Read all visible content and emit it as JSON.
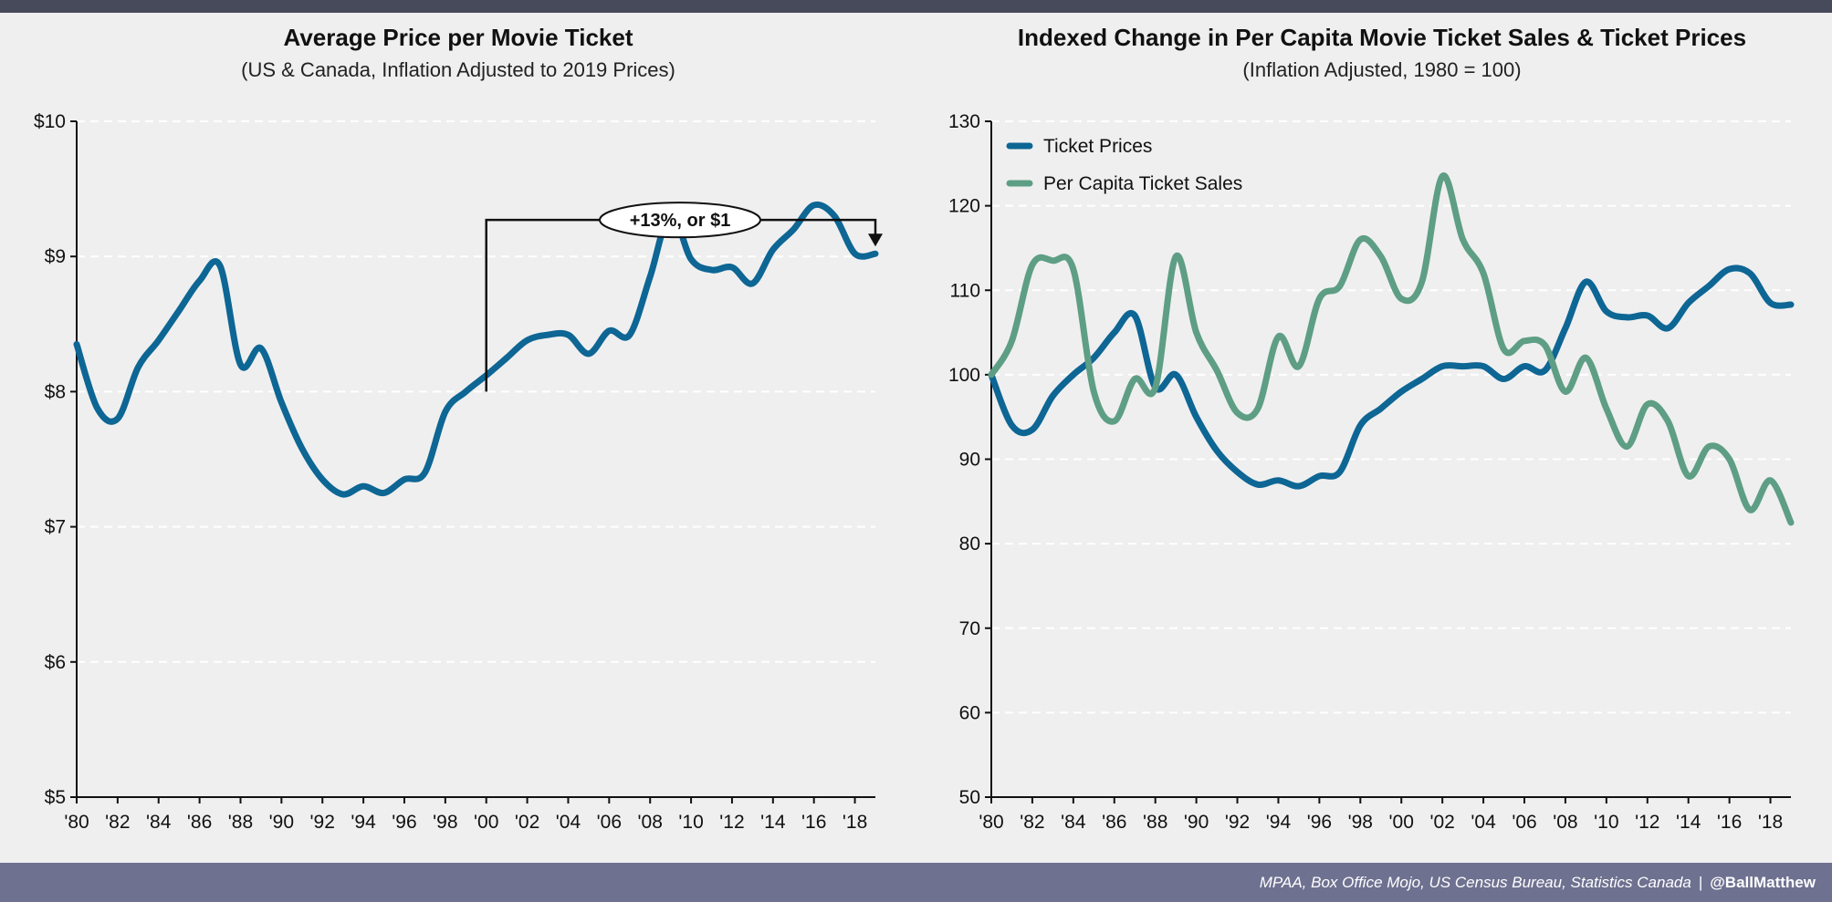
{
  "footer": {
    "sources": "MPAA, Box Office Mojo, US Census Bureau, Statistics Canada",
    "separator": "|",
    "handle": "@BallMatthew"
  },
  "colors": {
    "ticket_prices": "#0d6694",
    "ticket_sales": "#5e9e85",
    "annotation": "#111111",
    "background": "#efeff0",
    "top_bar": "#474a5a",
    "footer": "#6e7190"
  },
  "chart_data": [
    {
      "type": "line",
      "title": "Average Price per Movie Ticket",
      "subtitle": "(US & Canada, Inflation Adjusted to 2019 Prices)",
      "xlabel": "",
      "ylabel": "",
      "x": [
        1980,
        1981,
        1982,
        1983,
        1984,
        1985,
        1986,
        1987,
        1988,
        1989,
        1990,
        1991,
        1992,
        1993,
        1994,
        1995,
        1996,
        1997,
        1998,
        1999,
        2000,
        2001,
        2002,
        2003,
        2004,
        2005,
        2006,
        2007,
        2008,
        2009,
        2010,
        2011,
        2012,
        2013,
        2014,
        2015,
        2016,
        2017,
        2018,
        2019
      ],
      "xlim": [
        1980,
        2019
      ],
      "xticks": [
        1980,
        1982,
        1984,
        1986,
        1988,
        1990,
        1992,
        1994,
        1996,
        1998,
        2000,
        2002,
        2004,
        2006,
        2008,
        2010,
        2012,
        2014,
        2016,
        2018
      ],
      "xtick_labels": [
        "'80",
        "'82",
        "'84",
        "'86",
        "'88",
        "'90",
        "'92",
        "'94",
        "'96",
        "'98",
        "'00",
        "'02",
        "'04",
        "'06",
        "'08",
        "'10",
        "'12",
        "'14",
        "'16",
        "'18"
      ],
      "ylim": [
        5,
        10
      ],
      "yticks": [
        5,
        6,
        7,
        8,
        9,
        10
      ],
      "ytick_labels": [
        "$5",
        "$6",
        "$7",
        "$8",
        "$9",
        "$10"
      ],
      "grid": true,
      "series": [
        {
          "color": "#0d6694",
          "values": [
            8.35,
            7.88,
            7.8,
            8.18,
            8.38,
            8.6,
            8.82,
            8.93,
            8.2,
            8.32,
            7.92,
            7.58,
            7.35,
            7.24,
            7.3,
            7.25,
            7.35,
            7.4,
            7.85,
            8.0,
            8.12,
            8.25,
            8.38,
            8.42,
            8.42,
            8.28,
            8.45,
            8.42,
            8.85,
            9.32,
            8.98,
            8.9,
            8.92,
            8.8,
            9.05,
            9.2,
            9.38,
            9.3,
            9.02,
            9.02
          ]
        }
      ],
      "annotation": {
        "text": "+13%, or $1",
        "from_x": 2000,
        "from_y": 8.0,
        "to_x": 2019,
        "to_y": 9.02,
        "bar_y": 9.27
      }
    },
    {
      "type": "line",
      "title": "Indexed Change in Per Capita Movie Ticket Sales & Ticket Prices",
      "subtitle": "(Inflation Adjusted, 1980 = 100)",
      "xlabel": "",
      "ylabel": "",
      "x": [
        1980,
        1981,
        1982,
        1983,
        1984,
        1985,
        1986,
        1987,
        1988,
        1989,
        1990,
        1991,
        1992,
        1993,
        1994,
        1995,
        1996,
        1997,
        1998,
        1999,
        2000,
        2001,
        2002,
        2003,
        2004,
        2005,
        2006,
        2007,
        2008,
        2009,
        2010,
        2011,
        2012,
        2013,
        2014,
        2015,
        2016,
        2017,
        2018,
        2019
      ],
      "xlim": [
        1980,
        2019
      ],
      "xticks": [
        1980,
        1982,
        1984,
        1986,
        1988,
        1990,
        1992,
        1994,
        1996,
        1998,
        2000,
        2002,
        2004,
        2006,
        2008,
        2010,
        2012,
        2014,
        2016,
        2018
      ],
      "xtick_labels": [
        "'80",
        "'82",
        "'84",
        "'86",
        "'88",
        "'90",
        "'92",
        "'94",
        "'96",
        "'98",
        "'00",
        "'02",
        "'04",
        "'06",
        "'08",
        "'10",
        "'12",
        "'14",
        "'16",
        "'18"
      ],
      "ylim": [
        50,
        130
      ],
      "yticks": [
        50,
        60,
        70,
        80,
        90,
        100,
        110,
        120,
        130
      ],
      "ytick_labels": [
        "50",
        "60",
        "70",
        "80",
        "90",
        "100",
        "110",
        "120",
        "130"
      ],
      "grid": true,
      "legend_position": "top-left",
      "series": [
        {
          "name": "Ticket Prices",
          "color": "#0d6694",
          "values": [
            100,
            94,
            93.5,
            97.5,
            100,
            102,
            105,
            107,
            98.5,
            100,
            95,
            91,
            88.5,
            87,
            87.5,
            86.8,
            88,
            88.5,
            94,
            96,
            98,
            99.5,
            101,
            101,
            101,
            99.5,
            101,
            100.5,
            105.5,
            111,
            107.5,
            106.8,
            107,
            105.5,
            108.5,
            110.5,
            112.5,
            112,
            108.5,
            108.3
          ]
        },
        {
          "name": "Per Capita Ticket Sales",
          "color": "#5e9e85",
          "values": [
            100,
            104,
            113,
            113.5,
            112.5,
            98,
            94.5,
            99.5,
            98.5,
            114,
            105,
            100.5,
            95.5,
            96,
            104.5,
            101,
            109,
            110.5,
            116,
            114,
            109,
            111,
            123.5,
            116,
            112,
            103,
            104,
            103.5,
            98,
            102,
            96,
            91.5,
            96.5,
            94.5,
            88,
            91.5,
            90,
            84,
            87.5,
            82.5
          ]
        }
      ]
    }
  ]
}
